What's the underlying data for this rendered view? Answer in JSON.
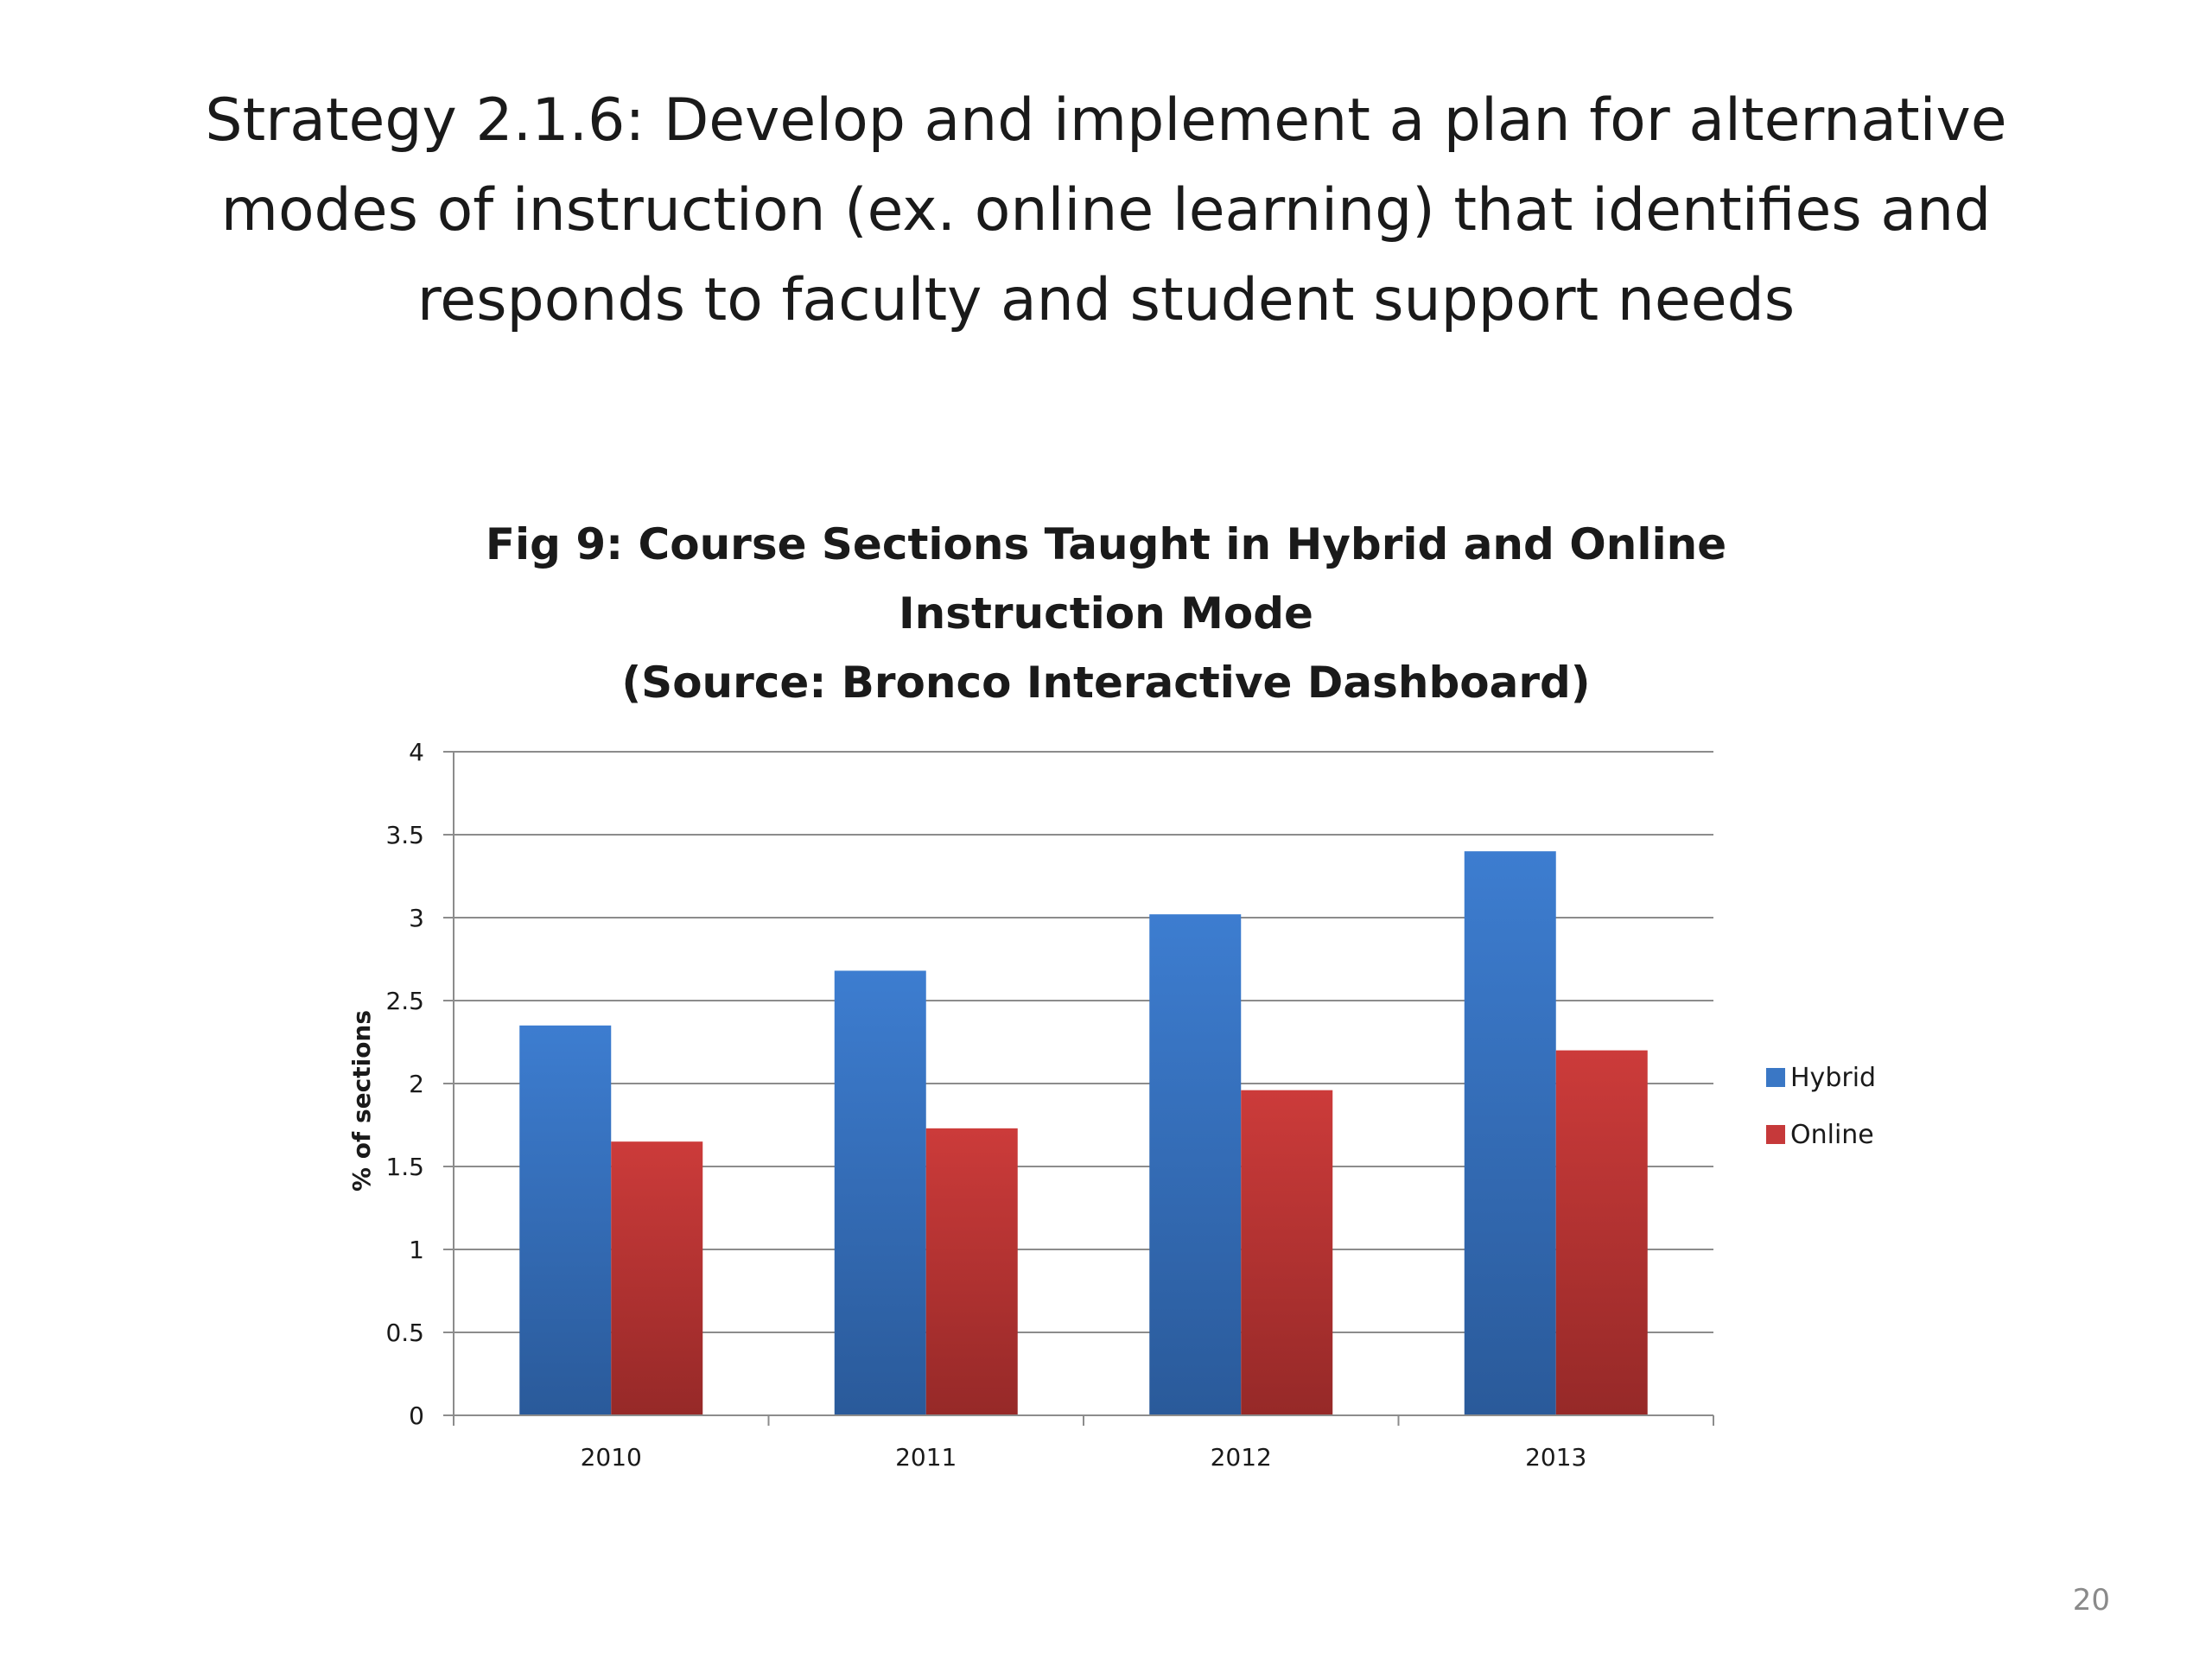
{
  "slide": {
    "title": "Strategy 2.1.6: Develop and implement a plan for alternative\nmodes of instruction (ex. online learning) that identifies and\nresponds to faculty and student support needs",
    "page_number": "20"
  },
  "chart_data": {
    "type": "bar",
    "title": "Fig 9: Course Sections Taught in Hybrid and Online\nInstruction Mode\n(Source: Bronco Interactive Dashboard)",
    "xlabel": "",
    "ylabel": "% of sections",
    "categories": [
      "2010",
      "2011",
      "2012",
      "2013"
    ],
    "series": [
      {
        "name": "Hybrid",
        "values": [
          2.35,
          2.68,
          3.02,
          3.4
        ],
        "color": "#3a77c5"
      },
      {
        "name": "Online",
        "values": [
          1.65,
          1.73,
          1.96,
          2.2
        ],
        "color": "#c6393a"
      }
    ],
    "ylim": [
      0,
      4
    ],
    "yticks": [
      "0",
      "0.5",
      "1",
      "1.5",
      "2",
      "2.5",
      "3",
      "3.5",
      "4"
    ],
    "grid": true,
    "legend_position": "right"
  }
}
